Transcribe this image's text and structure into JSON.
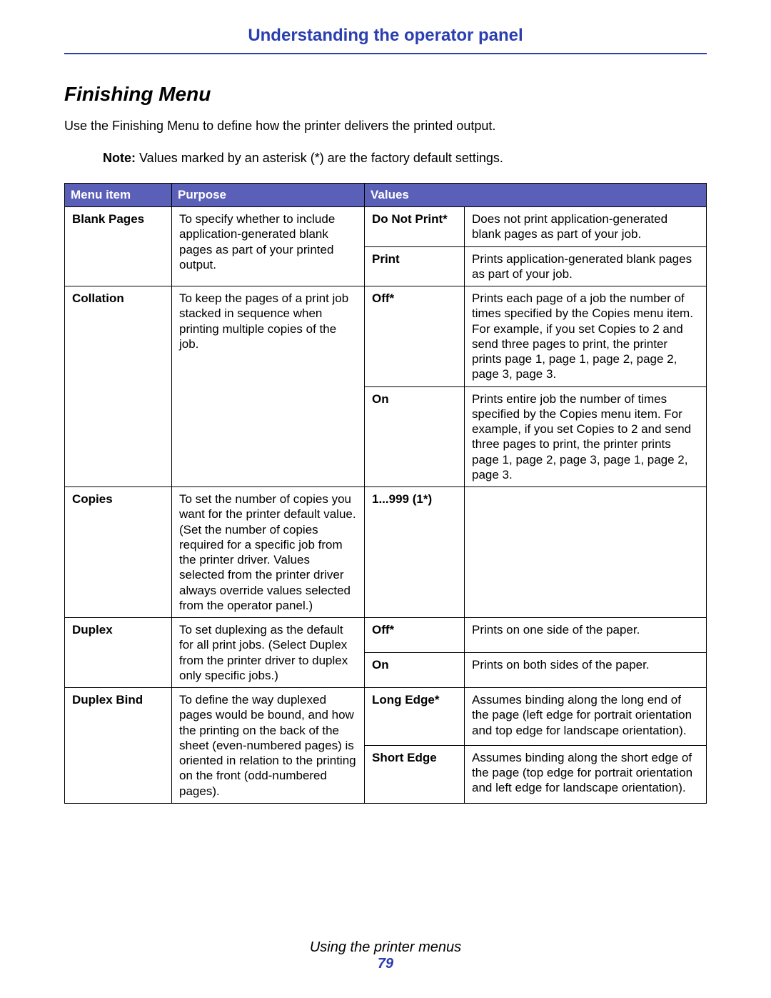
{
  "header": {
    "title": "Understanding the operator panel"
  },
  "section": {
    "title": "Finishing Menu"
  },
  "intro": "Use the Finishing Menu to define how the printer delivers the printed output.",
  "note": {
    "label": "Note:",
    "text": "Values marked by an asterisk (*) are the factory default settings."
  },
  "table": {
    "headers": {
      "c1": "Menu item",
      "c2": "Purpose",
      "c3": "Values"
    },
    "rows": {
      "blank_pages": {
        "name": "Blank Pages",
        "purpose": "To specify whether to include application-generated blank pages as part of your printed output.",
        "values": [
          {
            "label": "Do Not Print*",
            "desc": "Does not print application-generated blank pages as part of your job."
          },
          {
            "label": "Print",
            "desc": "Prints application-generated blank pages as part of your job."
          }
        ]
      },
      "collation": {
        "name": "Collation",
        "purpose": "To keep the pages of a print job stacked in sequence when printing multiple copies of the job.",
        "values": [
          {
            "label": "Off*",
            "desc": "Prints each page of a job the number of times specified by the Copies menu item. For example, if you set Copies to 2 and send three pages to print, the printer prints page 1, page 1, page 2, page 2, page 3, page 3."
          },
          {
            "label": "On",
            "desc": "Prints entire job the number of times specified by the Copies menu item. For example, if you set Copies to 2 and send three pages to print, the printer prints page 1, page 2, page 3, page 1, page 2, page 3."
          }
        ]
      },
      "copies": {
        "name": "Copies",
        "purpose": "To set the number of copies you want for the printer default value. (Set the number of copies required for a specific job from the printer driver. Values selected from the printer driver always override values selected from the operator panel.)",
        "values": [
          {
            "label": "1...999 (1*)",
            "desc": ""
          }
        ]
      },
      "duplex": {
        "name": "Duplex",
        "purpose": "To set duplexing as the default for all print jobs. (Select Duplex from the printer driver to duplex only specific jobs.)",
        "values": [
          {
            "label": "Off*",
            "desc": "Prints on one side of the paper."
          },
          {
            "label": "On",
            "desc": "Prints on both sides of the paper."
          }
        ]
      },
      "duplex_bind": {
        "name": "Duplex Bind",
        "purpose": "To define the way duplexed pages would be bound, and how the printing on the back of the sheet (even-numbered pages) is oriented in relation to the printing on the front (odd-numbered pages).",
        "values": [
          {
            "label": "Long Edge*",
            "desc": "Assumes binding along the long end of the page (left edge for portrait orientation and top edge for landscape orientation)."
          },
          {
            "label": "Short Edge",
            "desc": "Assumes binding along the short edge of the page (top edge for portrait orientation and left edge for landscape orientation)."
          }
        ]
      }
    }
  },
  "footer": {
    "line": "Using the printer menus",
    "page": "79"
  },
  "colors": {
    "accent": "#2a3fb0",
    "header_bg": "#5a5fb8",
    "text": "#000000",
    "bg": "#ffffff"
  }
}
